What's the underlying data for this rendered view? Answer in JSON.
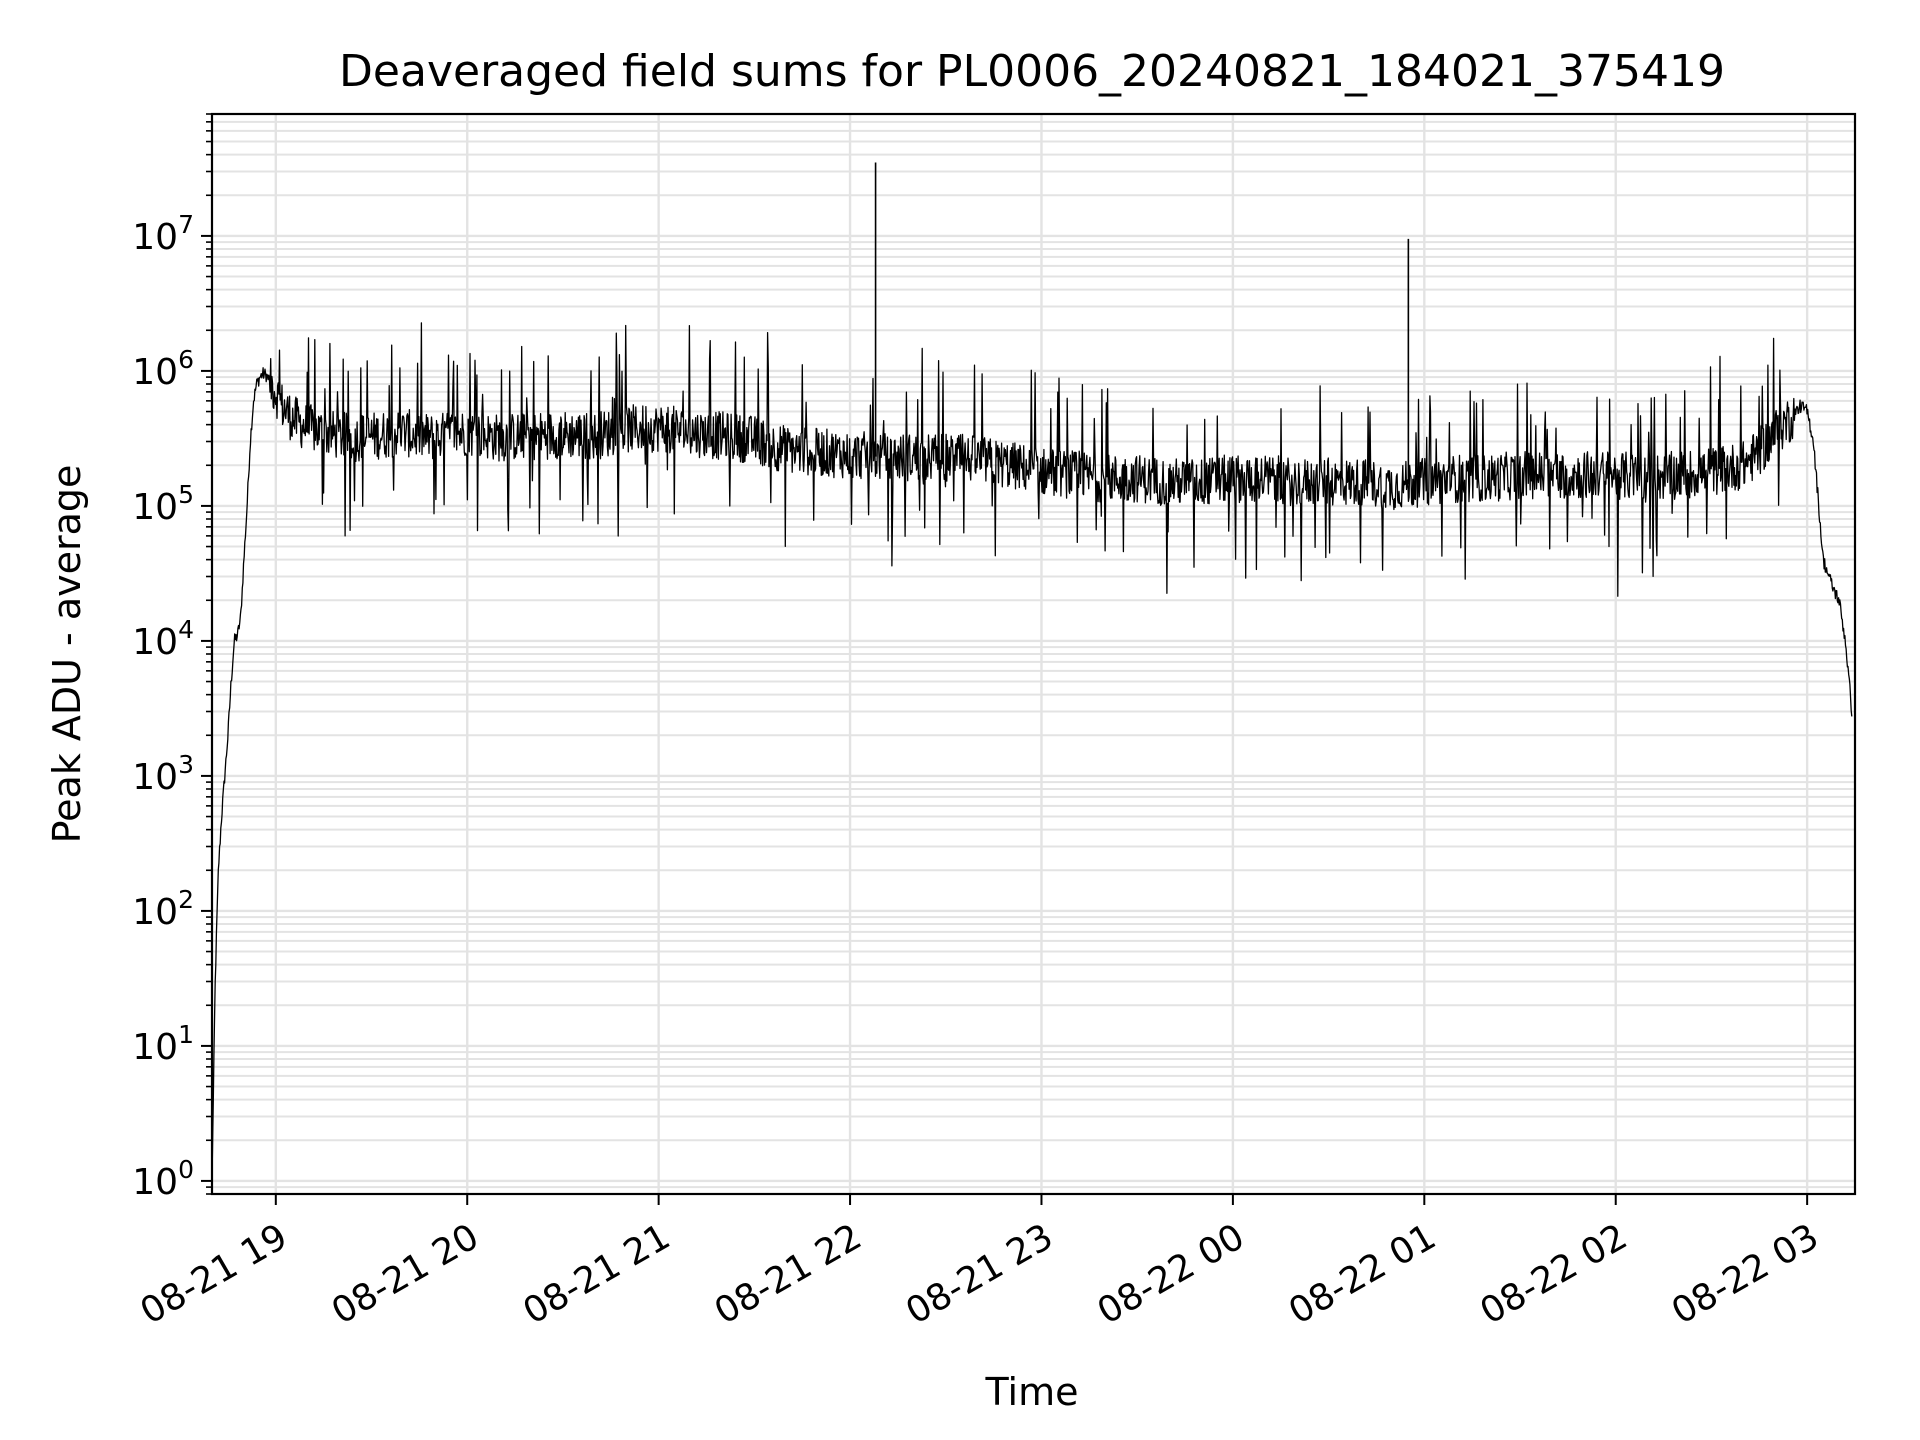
{
  "chart_data": {
    "type": "line",
    "title": "Deaveraged field sums for PL0006_20240821_184021_375419",
    "xlabel": "Time",
    "ylabel": "Peak ADU - average",
    "y_scale": "log",
    "ylim": [
      0.8,
      80000000
    ],
    "xlim": [
      "2024-08-21 18:40",
      "2024-08-22 03:15"
    ],
    "grid": true,
    "grid_color": "#e3e3e3",
    "line_color": "#000000",
    "x_ticks": [
      {
        "t": "2024-08-21 19:00",
        "label": "08-21 19"
      },
      {
        "t": "2024-08-21 20:00",
        "label": "08-21 20"
      },
      {
        "t": "2024-08-21 21:00",
        "label": "08-21 21"
      },
      {
        "t": "2024-08-21 22:00",
        "label": "08-21 22"
      },
      {
        "t": "2024-08-21 23:00",
        "label": "08-21 23"
      },
      {
        "t": "2024-08-22 00:00",
        "label": "08-22 00"
      },
      {
        "t": "2024-08-22 01:00",
        "label": "08-22 01"
      },
      {
        "t": "2024-08-22 02:00",
        "label": "08-22 02"
      },
      {
        "t": "2024-08-22 03:00",
        "label": "08-22 03"
      }
    ],
    "y_ticks": [
      {
        "value": 1,
        "base": "10",
        "exp": "0"
      },
      {
        "value": 10,
        "base": "10",
        "exp": "1"
      },
      {
        "value": 100,
        "base": "10",
        "exp": "2"
      },
      {
        "value": 1000,
        "base": "10",
        "exp": "3"
      },
      {
        "value": 10000,
        "base": "10",
        "exp": "4"
      },
      {
        "value": 100000,
        "base": "10",
        "exp": "5"
      },
      {
        "value": 1000000,
        "base": "10",
        "exp": "6"
      },
      {
        "value": 10000000,
        "base": "10",
        "exp": "7"
      }
    ],
    "series": [
      {
        "x": [
          "2024-08-21 18:40",
          "2024-08-21 18:41",
          "2024-08-21 18:42",
          "2024-08-21 18:43",
          "2024-08-21 18:44",
          "2024-08-21 18:45",
          "2024-08-21 18:46",
          "2024-08-21 18:47",
          "2024-08-21 18:48",
          "2024-08-21 18:49",
          "2024-08-21 18:50",
          "2024-08-21 18:51",
          "2024-08-21 18:52",
          "2024-08-21 18:53",
          "2024-08-21 18:54",
          "2024-08-21 18:55",
          "2024-08-21 18:56",
          "2024-08-21 18:57",
          "2024-08-21 18:58",
          "2024-08-21 19:00",
          "2024-08-21 19:02",
          "2024-08-21 19:05",
          "2024-08-21 19:08",
          "2024-08-21 19:10",
          "2024-08-21 19:15",
          "2024-08-21 19:20",
          "2024-08-21 19:25",
          "2024-08-21 19:30",
          "2024-08-21 19:35",
          "2024-08-21 19:40",
          "2024-08-21 19:45",
          "2024-08-21 19:50",
          "2024-08-21 19:55",
          "2024-08-21 20:00",
          "2024-08-21 20:10",
          "2024-08-21 20:20",
          "2024-08-21 20:30",
          "2024-08-21 20:40",
          "2024-08-21 20:50",
          "2024-08-21 21:00",
          "2024-08-21 21:10",
          "2024-08-21 21:20",
          "2024-08-21 21:30",
          "2024-08-21 21:40",
          "2024-08-21 21:50",
          "2024-08-21 22:00",
          "2024-08-21 22:10",
          "2024-08-21 22:20",
          "2024-08-21 22:30",
          "2024-08-21 22:40",
          "2024-08-21 22:50",
          "2024-08-21 23:00",
          "2024-08-21 23:10",
          "2024-08-21 23:20",
          "2024-08-21 23:30",
          "2024-08-21 23:40",
          "2024-08-21 23:50",
          "2024-08-22 00:00",
          "2024-08-22 00:10",
          "2024-08-22 00:20",
          "2024-08-22 00:30",
          "2024-08-22 00:40",
          "2024-08-22 00:50",
          "2024-08-22 01:00",
          "2024-08-22 01:10",
          "2024-08-22 01:20",
          "2024-08-22 01:30",
          "2024-08-22 01:40",
          "2024-08-22 01:50",
          "2024-08-22 02:00",
          "2024-08-22 02:10",
          "2024-08-22 02:20",
          "2024-08-22 02:30",
          "2024-08-22 02:40",
          "2024-08-22 02:45",
          "2024-08-22 02:50",
          "2024-08-22 02:55",
          "2024-08-22 02:58",
          "2024-08-22 03:00",
          "2024-08-22 03:02",
          "2024-08-22 03:05",
          "2024-08-22 03:08",
          "2024-08-22 03:10",
          "2024-08-22 03:12",
          "2024-08-22 03:14"
        ],
        "y": [
          1,
          30,
          200,
          500,
          1000,
          2000,
          5000,
          10000,
          11000,
          15000,
          40000,
          100000,
          300000,
          600000,
          800000,
          900000,
          950000,
          930000,
          850000,
          700000,
          550000,
          450000,
          400000,
          380000,
          350000,
          330000,
          320000,
          330000,
          340000,
          350000,
          330000,
          320000,
          340000,
          350000,
          320000,
          330000,
          340000,
          330000,
          370000,
          380000,
          350000,
          330000,
          310000,
          260000,
          250000,
          240000,
          230000,
          230000,
          230000,
          220000,
          200000,
          180000,
          170000,
          160000,
          160000,
          150000,
          150000,
          160000,
          160000,
          150000,
          150000,
          150000,
          140000,
          150000,
          160000,
          160000,
          170000,
          170000,
          170000,
          170000,
          160000,
          170000,
          180000,
          200000,
          250000,
          350000,
          450000,
          550000,
          500000,
          300000,
          40000,
          25000,
          20000,
          10000,
          3000
        ]
      }
    ],
    "spikes": [
      {
        "x": "2024-08-21 22:08",
        "y": 35000000
      },
      {
        "x": "2024-08-22 00:55",
        "y": 9500000
      }
    ]
  }
}
